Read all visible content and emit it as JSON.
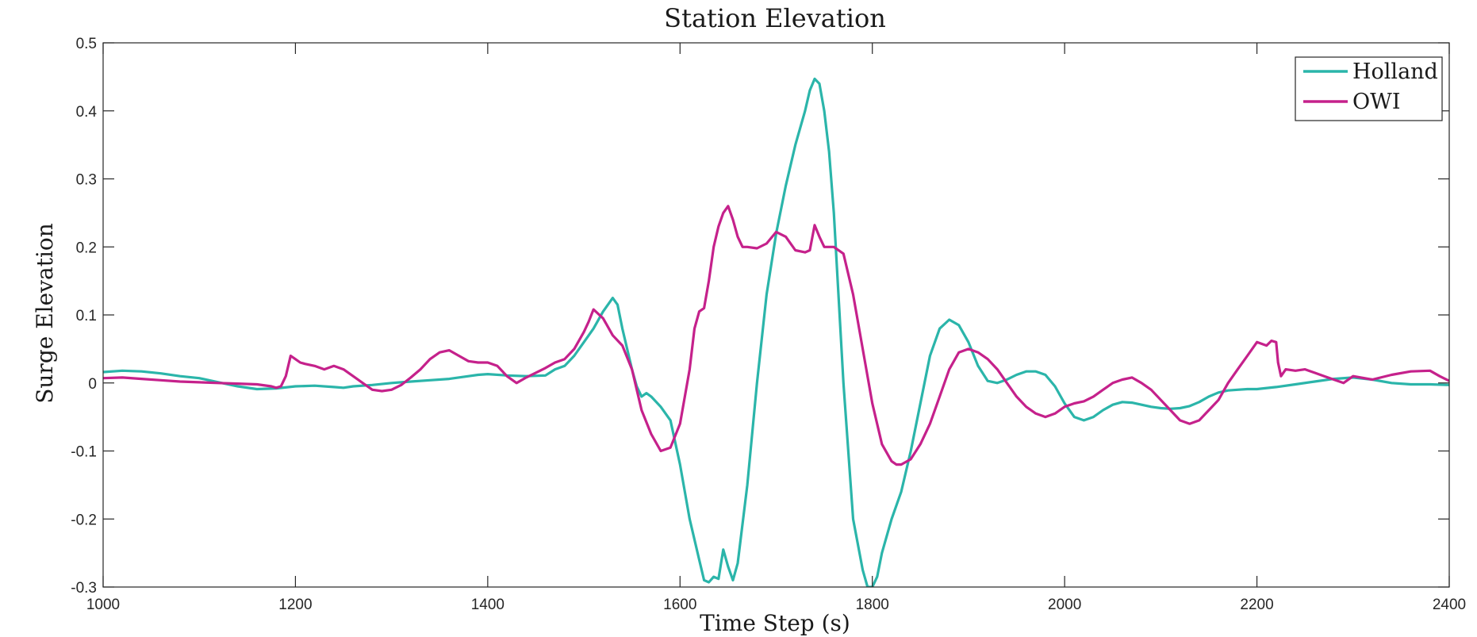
{
  "chart_data": {
    "type": "line",
    "title": "Station Elevation",
    "xlabel": "Time Step (s)",
    "ylabel": "Surge Elevation",
    "xlim": [
      1000,
      2400
    ],
    "ylim": [
      -0.3,
      0.5
    ],
    "xticks": [
      1000,
      1200,
      1400,
      1600,
      1800,
      2000,
      2200,
      2400
    ],
    "yticks": [
      -0.3,
      -0.2,
      -0.1,
      0,
      0.1,
      0.2,
      0.3,
      0.4,
      0.5
    ],
    "xtick_labels": [
      "1000",
      "1200",
      "1400",
      "1600",
      "1800",
      "2000",
      "2200",
      "2400"
    ],
    "ytick_labels": [
      "-0.3",
      "-0.2",
      "-0.1",
      "0",
      "0.1",
      "0.2",
      "0.3",
      "0.4",
      "0.5"
    ],
    "grid": false,
    "legend_position": "top-right",
    "series": [
      {
        "name": "Holland",
        "color": "#2bb5aa",
        "x": [
          1000,
          1020,
          1040,
          1060,
          1080,
          1100,
          1120,
          1140,
          1160,
          1180,
          1200,
          1220,
          1240,
          1250,
          1260,
          1280,
          1300,
          1320,
          1340,
          1360,
          1380,
          1390,
          1400,
          1420,
          1440,
          1460,
          1470,
          1480,
          1490,
          1500,
          1510,
          1520,
          1530,
          1535,
          1540,
          1550,
          1555,
          1560,
          1565,
          1570,
          1580,
          1590,
          1600,
          1610,
          1620,
          1625,
          1630,
          1635,
          1640,
          1645,
          1650,
          1655,
          1660,
          1670,
          1680,
          1690,
          1700,
          1710,
          1720,
          1730,
          1735,
          1740,
          1745,
          1750,
          1755,
          1760,
          1770,
          1780,
          1790,
          1795,
          1800,
          1805,
          1810,
          1820,
          1830,
          1840,
          1850,
          1860,
          1870,
          1880,
          1890,
          1900,
          1910,
          1920,
          1930,
          1940,
          1950,
          1960,
          1970,
          1980,
          1990,
          2000,
          2010,
          2020,
          2030,
          2040,
          2050,
          2060,
          2070,
          2080,
          2090,
          2100,
          2110,
          2120,
          2130,
          2140,
          2150,
          2160,
          2170,
          2180,
          2190,
          2200,
          2220,
          2240,
          2260,
          2280,
          2300,
          2320,
          2340,
          2360,
          2380,
          2400
        ],
        "y": [
          0.016,
          0.018,
          0.017,
          0.014,
          0.01,
          0.007,
          0.001,
          -0.005,
          -0.009,
          -0.008,
          -0.005,
          -0.004,
          -0.006,
          -0.007,
          -0.005,
          -0.003,
          0.0,
          0.002,
          0.004,
          0.006,
          0.01,
          0.012,
          0.013,
          0.011,
          0.01,
          0.011,
          0.02,
          0.025,
          0.04,
          0.06,
          0.08,
          0.105,
          0.125,
          0.115,
          0.08,
          0.02,
          -0.005,
          -0.02,
          -0.015,
          -0.02,
          -0.035,
          -0.055,
          -0.12,
          -0.2,
          -0.26,
          -0.29,
          -0.293,
          -0.285,
          -0.288,
          -0.245,
          -0.27,
          -0.29,
          -0.265,
          -0.15,
          0.0,
          0.13,
          0.22,
          0.29,
          0.35,
          0.4,
          0.43,
          0.447,
          0.44,
          0.4,
          0.34,
          0.25,
          0.0,
          -0.2,
          -0.275,
          -0.3,
          -0.3,
          -0.285,
          -0.25,
          -0.2,
          -0.16,
          -0.1,
          -0.03,
          0.04,
          0.08,
          0.093,
          0.085,
          0.06,
          0.025,
          0.003,
          0.0,
          0.005,
          0.012,
          0.017,
          0.017,
          0.012,
          -0.005,
          -0.03,
          -0.05,
          -0.055,
          -0.05,
          -0.04,
          -0.032,
          -0.028,
          -0.029,
          -0.032,
          -0.035,
          -0.037,
          -0.038,
          -0.037,
          -0.034,
          -0.028,
          -0.02,
          -0.014,
          -0.011,
          -0.01,
          -0.009,
          -0.009,
          -0.006,
          -0.002,
          0.002,
          0.006,
          0.008,
          0.005,
          0.0,
          -0.002,
          -0.002,
          -0.003
        ]
      },
      {
        "name": "OWI",
        "color": "#c5218b",
        "x": [
          1000,
          1020,
          1040,
          1060,
          1080,
          1100,
          1120,
          1140,
          1160,
          1175,
          1180,
          1185,
          1190,
          1195,
          1200,
          1205,
          1210,
          1220,
          1230,
          1240,
          1250,
          1260,
          1270,
          1280,
          1290,
          1300,
          1310,
          1320,
          1330,
          1340,
          1350,
          1360,
          1370,
          1380,
          1390,
          1400,
          1410,
          1420,
          1430,
          1440,
          1450,
          1460,
          1470,
          1480,
          1490,
          1500,
          1505,
          1510,
          1520,
          1530,
          1540,
          1550,
          1560,
          1570,
          1580,
          1590,
          1600,
          1610,
          1615,
          1620,
          1625,
          1630,
          1635,
          1640,
          1645,
          1650,
          1655,
          1660,
          1665,
          1670,
          1680,
          1690,
          1700,
          1710,
          1720,
          1730,
          1735,
          1740,
          1745,
          1750,
          1760,
          1770,
          1780,
          1790,
          1800,
          1810,
          1820,
          1825,
          1830,
          1840,
          1850,
          1860,
          1870,
          1880,
          1890,
          1900,
          1910,
          1920,
          1930,
          1940,
          1950,
          1960,
          1970,
          1980,
          1990,
          2000,
          2010,
          2020,
          2030,
          2040,
          2050,
          2060,
          2070,
          2080,
          2090,
          2100,
          2110,
          2120,
          2130,
          2140,
          2150,
          2160,
          2170,
          2180,
          2190,
          2200,
          2210,
          2215,
          2220,
          2222,
          2225,
          2230,
          2240,
          2250,
          2260,
          2270,
          2280,
          2290,
          2300,
          2320,
          2340,
          2360,
          2380,
          2390,
          2400
        ],
        "y": [
          0.007,
          0.008,
          0.006,
          0.004,
          0.002,
          0.001,
          0.0,
          -0.001,
          -0.002,
          -0.005,
          -0.007,
          -0.005,
          0.01,
          0.04,
          0.035,
          0.03,
          0.028,
          0.025,
          0.02,
          0.025,
          0.02,
          0.01,
          0.0,
          -0.01,
          -0.012,
          -0.01,
          -0.003,
          0.008,
          0.02,
          0.035,
          0.045,
          0.048,
          0.04,
          0.032,
          0.03,
          0.03,
          0.025,
          0.01,
          0.0,
          0.008,
          0.015,
          0.022,
          0.03,
          0.035,
          0.05,
          0.075,
          0.09,
          0.108,
          0.095,
          0.07,
          0.055,
          0.02,
          -0.04,
          -0.075,
          -0.1,
          -0.095,
          -0.06,
          0.02,
          0.08,
          0.105,
          0.11,
          0.15,
          0.2,
          0.23,
          0.25,
          0.26,
          0.24,
          0.215,
          0.2,
          0.2,
          0.198,
          0.205,
          0.222,
          0.215,
          0.195,
          0.192,
          0.195,
          0.232,
          0.215,
          0.2,
          0.2,
          0.19,
          0.13,
          0.05,
          -0.03,
          -0.09,
          -0.115,
          -0.12,
          -0.12,
          -0.112,
          -0.09,
          -0.06,
          -0.02,
          0.02,
          0.045,
          0.05,
          0.045,
          0.035,
          0.02,
          0.0,
          -0.02,
          -0.035,
          -0.045,
          -0.05,
          -0.045,
          -0.035,
          -0.03,
          -0.027,
          -0.02,
          -0.01,
          0.0,
          0.005,
          0.008,
          0.0,
          -0.01,
          -0.025,
          -0.04,
          -0.055,
          -0.06,
          -0.055,
          -0.04,
          -0.025,
          0.0,
          0.02,
          0.04,
          0.06,
          0.055,
          0.062,
          0.06,
          0.03,
          0.01,
          0.02,
          0.018,
          0.02,
          0.015,
          0.01,
          0.005,
          0.0,
          0.01,
          0.005,
          0.012,
          0.017,
          0.018,
          0.01,
          0.003
        ]
      }
    ]
  }
}
